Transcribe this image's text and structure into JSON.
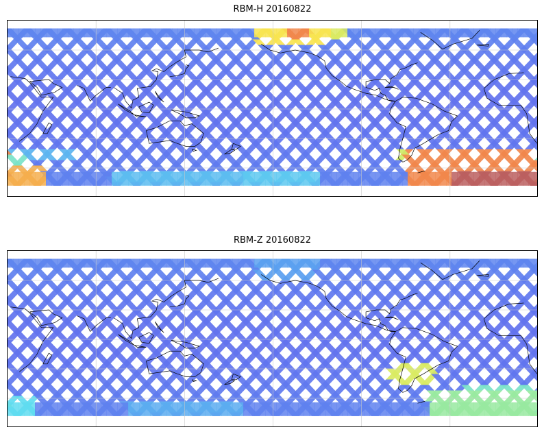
{
  "panels": [
    {
      "title": "RBM-H 20160822",
      "hot_regions": [
        {
          "lon": [
            -172,
            -120
          ],
          "lat": [
            65,
            82
          ],
          "level": 0.78
        },
        {
          "lon": [
            -150,
            -135
          ],
          "lat": [
            72,
            82
          ],
          "level": 0.9
        },
        {
          "lon": [
            -128,
            -110
          ],
          "lat": [
            70,
            82
          ],
          "level": 0.72
        },
        {
          "lon": [
            -70,
            20
          ],
          "lat": [
            -78,
            -40
          ],
          "level": 0.9
        },
        {
          "lon": [
            -40,
            20
          ],
          "lat": [
            -78,
            -62
          ],
          "level": 1.0
        },
        {
          "lon": [
            -75,
            -45
          ],
          "lat": [
            -60,
            -40
          ],
          "level": 0.7
        },
        {
          "lon": [
            20,
            45
          ],
          "lat": [
            -78,
            -55
          ],
          "level": 0.85
        },
        {
          "lon": [
            20,
            35
          ],
          "lat": [
            -55,
            -45
          ],
          "level": 0.55
        },
        {
          "lon": [
            90,
            180
          ],
          "lat": [
            -75,
            -62
          ],
          "level": 0.42
        },
        {
          "lon": [
            -180,
            -130
          ],
          "lat": [
            -75,
            -62
          ],
          "level": 0.45
        },
        {
          "lon": [
            20,
            70
          ],
          "lat": [
            -50,
            -40
          ],
          "level": 0.4
        }
      ]
    },
    {
      "title": "RBM-Z 20160822",
      "hot_regions": [
        {
          "lon": [
            -80,
            -50
          ],
          "lat": [
            -45,
            -25
          ],
          "level": 0.72
        },
        {
          "lon": [
            -55,
            20
          ],
          "lat": [
            -78,
            -50
          ],
          "level": 0.6
        },
        {
          "lon": [
            -30,
            20
          ],
          "lat": [
            -60,
            -45
          ],
          "level": 0.55
        },
        {
          "lon": [
            20,
            40
          ],
          "lat": [
            -78,
            -55
          ],
          "level": 0.5
        },
        {
          "lon": [
            -172,
            -130
          ],
          "lat": [
            62,
            82
          ],
          "level": 0.35
        },
        {
          "lon": [
            100,
            180
          ],
          "lat": [
            -75,
            -62
          ],
          "level": 0.38
        }
      ]
    }
  ],
  "colors": {
    "low": "#6464ee",
    "mid": "#5fdcf0",
    "high": "#f0784a",
    "max": "#bb5f5f",
    "coast": "#000000",
    "grid": "#c8c8c8"
  }
}
